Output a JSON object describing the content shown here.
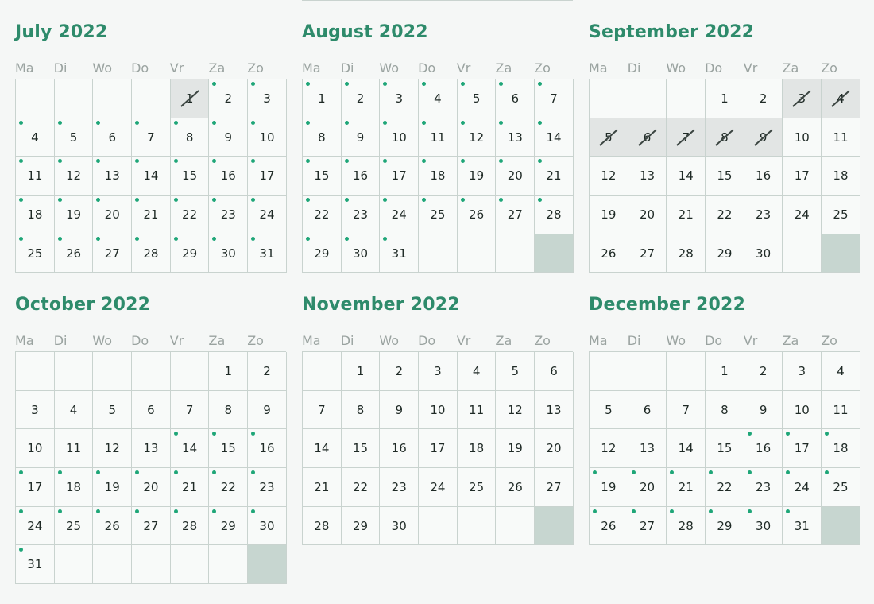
{
  "weekdays": [
    "Ma",
    "Di",
    "Wo",
    "Do",
    "Vr",
    "Za",
    "Zo"
  ],
  "colors": {
    "title": "#2e8b6b",
    "available_dot": "#1fa678",
    "blocked_cell": "#e2e5e4",
    "filler_cell": "#c7d6d0"
  },
  "months": [
    {
      "title": "July 2022",
      "start_offset": 4,
      "days": 31,
      "available": [
        2,
        3,
        4,
        5,
        6,
        7,
        8,
        9,
        10,
        11,
        12,
        13,
        14,
        15,
        16,
        17,
        18,
        19,
        20,
        21,
        22,
        23,
        24,
        25,
        26,
        27,
        28,
        29,
        30,
        31
      ],
      "blocked": [
        1
      ],
      "trailing_filler": 0
    },
    {
      "title": "August 2022",
      "start_offset": 0,
      "days": 31,
      "available": [
        1,
        2,
        3,
        4,
        5,
        6,
        7,
        8,
        9,
        10,
        11,
        12,
        13,
        14,
        15,
        16,
        17,
        18,
        19,
        20,
        21,
        22,
        23,
        24,
        25,
        26,
        27,
        28,
        29,
        30,
        31
      ],
      "blocked": [],
      "trailing_filler": 1
    },
    {
      "title": "September 2022",
      "start_offset": 3,
      "days": 30,
      "available": [],
      "blocked": [
        3,
        4,
        5,
        6,
        7,
        8,
        9
      ],
      "trailing_filler": 1
    },
    {
      "title": "October 2022",
      "start_offset": 5,
      "days": 31,
      "available": [
        14,
        15,
        16,
        17,
        18,
        19,
        20,
        21,
        22,
        23,
        24,
        25,
        26,
        27,
        28,
        29,
        30,
        31
      ],
      "blocked": [],
      "trailing_filler": 1
    },
    {
      "title": "November 2022",
      "start_offset": 1,
      "days": 30,
      "available": [],
      "blocked": [],
      "trailing_filler": 1
    },
    {
      "title": "December 2022",
      "start_offset": 3,
      "days": 31,
      "available": [
        16,
        17,
        18,
        19,
        20,
        21,
        22,
        23,
        24,
        25,
        26,
        27,
        28,
        29,
        30,
        31
      ],
      "blocked": [],
      "trailing_filler": 1
    }
  ]
}
